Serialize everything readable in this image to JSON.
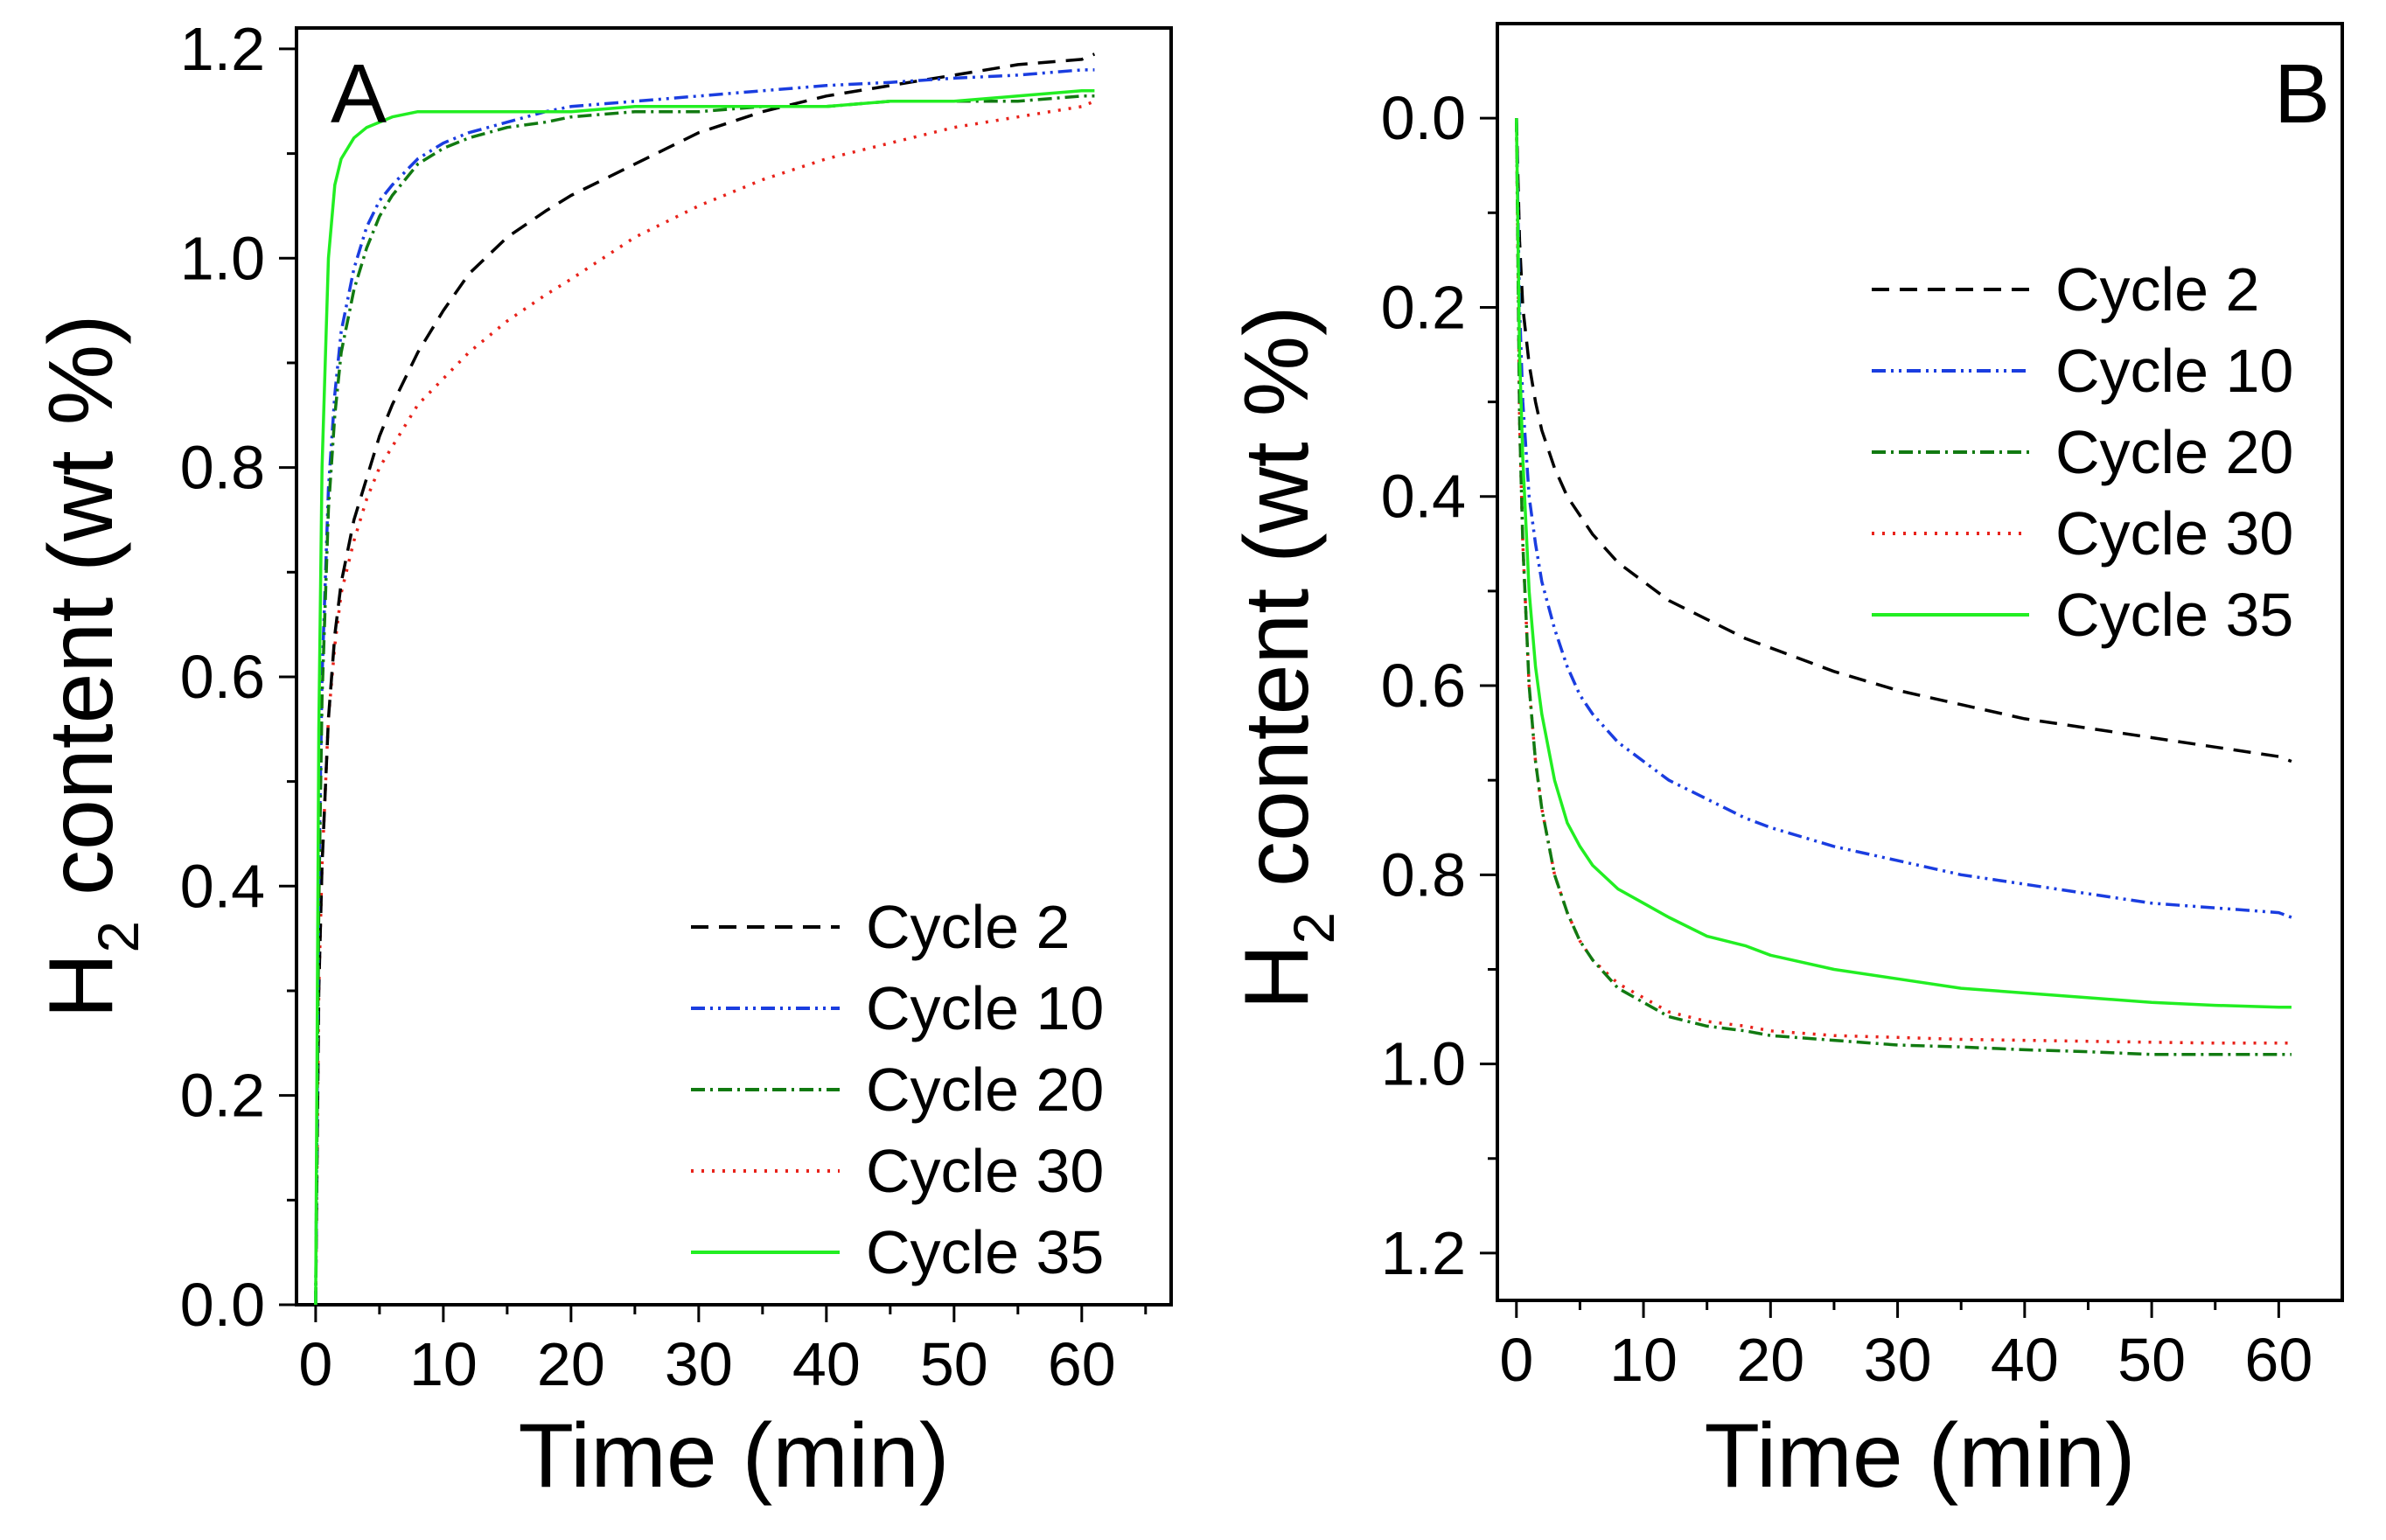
{
  "chart_data": [
    {
      "type": "line",
      "title": "A",
      "xlabel": "Time (min)",
      "ylabel_main": "H",
      "ylabel_sub": "2",
      "ylabel_rest": " content (wt %)",
      "xlim": [
        -1.5,
        67
      ],
      "ylim": [
        0.0,
        1.22
      ],
      "xticks": [
        0,
        10,
        20,
        30,
        40,
        50,
        60
      ],
      "xtick_labels": [
        "0",
        "10",
        "20",
        "30",
        "40",
        "50",
        "60"
      ],
      "yticks": [
        0.0,
        0.2,
        0.4,
        0.6,
        0.8,
        1.0,
        1.2
      ],
      "ytick_labels": [
        "0.0",
        "0.2",
        "0.4",
        "0.6",
        "0.8",
        "1.0",
        "1.2"
      ],
      "legend_position": "bottom-right",
      "x": [
        0,
        0.25,
        0.5,
        1,
        1.5,
        2,
        3,
        4,
        5,
        6,
        8,
        10,
        12,
        15,
        18,
        20,
        25,
        30,
        35,
        40,
        45,
        50,
        55,
        60,
        61
      ],
      "series": [
        {
          "name": "Cycle 2",
          "color": "#000000",
          "dash": "20,12",
          "values": [
            0,
            0.3,
            0.42,
            0.56,
            0.64,
            0.69,
            0.75,
            0.79,
            0.83,
            0.86,
            0.91,
            0.95,
            0.985,
            1.02,
            1.045,
            1.06,
            1.09,
            1.12,
            1.14,
            1.155,
            1.165,
            1.175,
            1.185,
            1.19,
            1.195
          ]
        },
        {
          "name": "Cycle 10",
          "color": "#1a3de0",
          "dash": "16,6,3,6,3,6",
          "values": [
            0,
            0.4,
            0.6,
            0.78,
            0.87,
            0.93,
            0.99,
            1.03,
            1.055,
            1.07,
            1.095,
            1.11,
            1.12,
            1.13,
            1.14,
            1.145,
            1.15,
            1.155,
            1.16,
            1.165,
            1.168,
            1.172,
            1.175,
            1.18,
            1.18
          ]
        },
        {
          "name": "Cycle 20",
          "color": "#117a11",
          "dash": "16,6,3,6",
          "values": [
            0,
            0.38,
            0.58,
            0.76,
            0.85,
            0.91,
            0.97,
            1.01,
            1.04,
            1.06,
            1.09,
            1.105,
            1.115,
            1.125,
            1.13,
            1.135,
            1.14,
            1.14,
            1.145,
            1.145,
            1.15,
            1.15,
            1.15,
            1.155,
            1.155
          ]
        },
        {
          "name": "Cycle 30",
          "color": "#e8221a",
          "dash": "3,9",
          "values": [
            0,
            0.3,
            0.42,
            0.56,
            0.63,
            0.68,
            0.73,
            0.77,
            0.8,
            0.82,
            0.86,
            0.885,
            0.91,
            0.94,
            0.965,
            0.98,
            1.02,
            1.05,
            1.075,
            1.095,
            1.11,
            1.125,
            1.135,
            1.145,
            1.15
          ]
        },
        {
          "name": "Cycle 35",
          "color": "#22ee22",
          "dash": "",
          "values": [
            0,
            0.55,
            0.8,
            1.0,
            1.07,
            1.095,
            1.115,
            1.125,
            1.13,
            1.135,
            1.14,
            1.14,
            1.14,
            1.14,
            1.14,
            1.14,
            1.145,
            1.145,
            1.145,
            1.145,
            1.15,
            1.15,
            1.155,
            1.16,
            1.16
          ]
        }
      ]
    },
    {
      "type": "line",
      "title": "B",
      "xlabel": "Time (min)",
      "ylabel_main": "H",
      "ylabel_sub": "2",
      "ylabel_rest": " content (wt %)",
      "xlim": [
        -1.5,
        65
      ],
      "ylim": [
        -0.1,
        1.25
      ],
      "y_inverted": true,
      "xticks": [
        0,
        10,
        20,
        30,
        40,
        50,
        60
      ],
      "xtick_labels": [
        "0",
        "10",
        "20",
        "30",
        "40",
        "50",
        "60"
      ],
      "yticks": [
        0.0,
        0.2,
        0.4,
        0.6,
        0.8,
        1.0,
        1.2
      ],
      "ytick_labels": [
        "0.0",
        "0.2",
        "0.4",
        "0.6",
        "0.8",
        "1.0",
        "1.2"
      ],
      "legend_position": "top-right",
      "x": [
        0,
        0.25,
        0.5,
        1,
        1.5,
        2,
        3,
        4,
        5,
        6,
        8,
        10,
        12,
        15,
        18,
        20,
        25,
        30,
        35,
        40,
        45,
        50,
        55,
        60,
        61
      ],
      "series": [
        {
          "name": "Cycle 2",
          "color": "#000000",
          "dash": "20,12",
          "values": [
            0,
            0.13,
            0.2,
            0.26,
            0.3,
            0.33,
            0.37,
            0.4,
            0.42,
            0.44,
            0.47,
            0.49,
            0.51,
            0.53,
            0.55,
            0.56,
            0.585,
            0.605,
            0.62,
            0.635,
            0.645,
            0.655,
            0.665,
            0.675,
            0.68
          ]
        },
        {
          "name": "Cycle 10",
          "color": "#1a3de0",
          "dash": "16,6,3,6,3,6",
          "values": [
            0,
            0.2,
            0.3,
            0.4,
            0.45,
            0.49,
            0.54,
            0.58,
            0.61,
            0.63,
            0.66,
            0.68,
            0.7,
            0.72,
            0.74,
            0.75,
            0.77,
            0.785,
            0.8,
            0.81,
            0.82,
            0.83,
            0.835,
            0.84,
            0.845
          ]
        },
        {
          "name": "Cycle 20",
          "color": "#117a11",
          "dash": "16,6,3,6",
          "values": [
            0,
            0.32,
            0.45,
            0.6,
            0.68,
            0.73,
            0.8,
            0.84,
            0.87,
            0.89,
            0.92,
            0.935,
            0.95,
            0.96,
            0.965,
            0.97,
            0.975,
            0.98,
            0.982,
            0.985,
            0.987,
            0.99,
            0.99,
            0.99,
            0.99
          ]
        },
        {
          "name": "Cycle 30",
          "color": "#e8221a",
          "dash": "3,9",
          "values": [
            0,
            0.32,
            0.45,
            0.6,
            0.68,
            0.73,
            0.8,
            0.84,
            0.87,
            0.89,
            0.915,
            0.93,
            0.945,
            0.955,
            0.96,
            0.965,
            0.97,
            0.972,
            0.974,
            0.975,
            0.976,
            0.977,
            0.978,
            0.978,
            0.978
          ]
        },
        {
          "name": "Cycle 35",
          "color": "#22ee22",
          "dash": "",
          "values": [
            0,
            0.25,
            0.36,
            0.5,
            0.58,
            0.63,
            0.7,
            0.745,
            0.77,
            0.79,
            0.815,
            0.83,
            0.845,
            0.865,
            0.875,
            0.885,
            0.9,
            0.91,
            0.92,
            0.925,
            0.93,
            0.935,
            0.938,
            0.94,
            0.94
          ]
        }
      ]
    }
  ]
}
